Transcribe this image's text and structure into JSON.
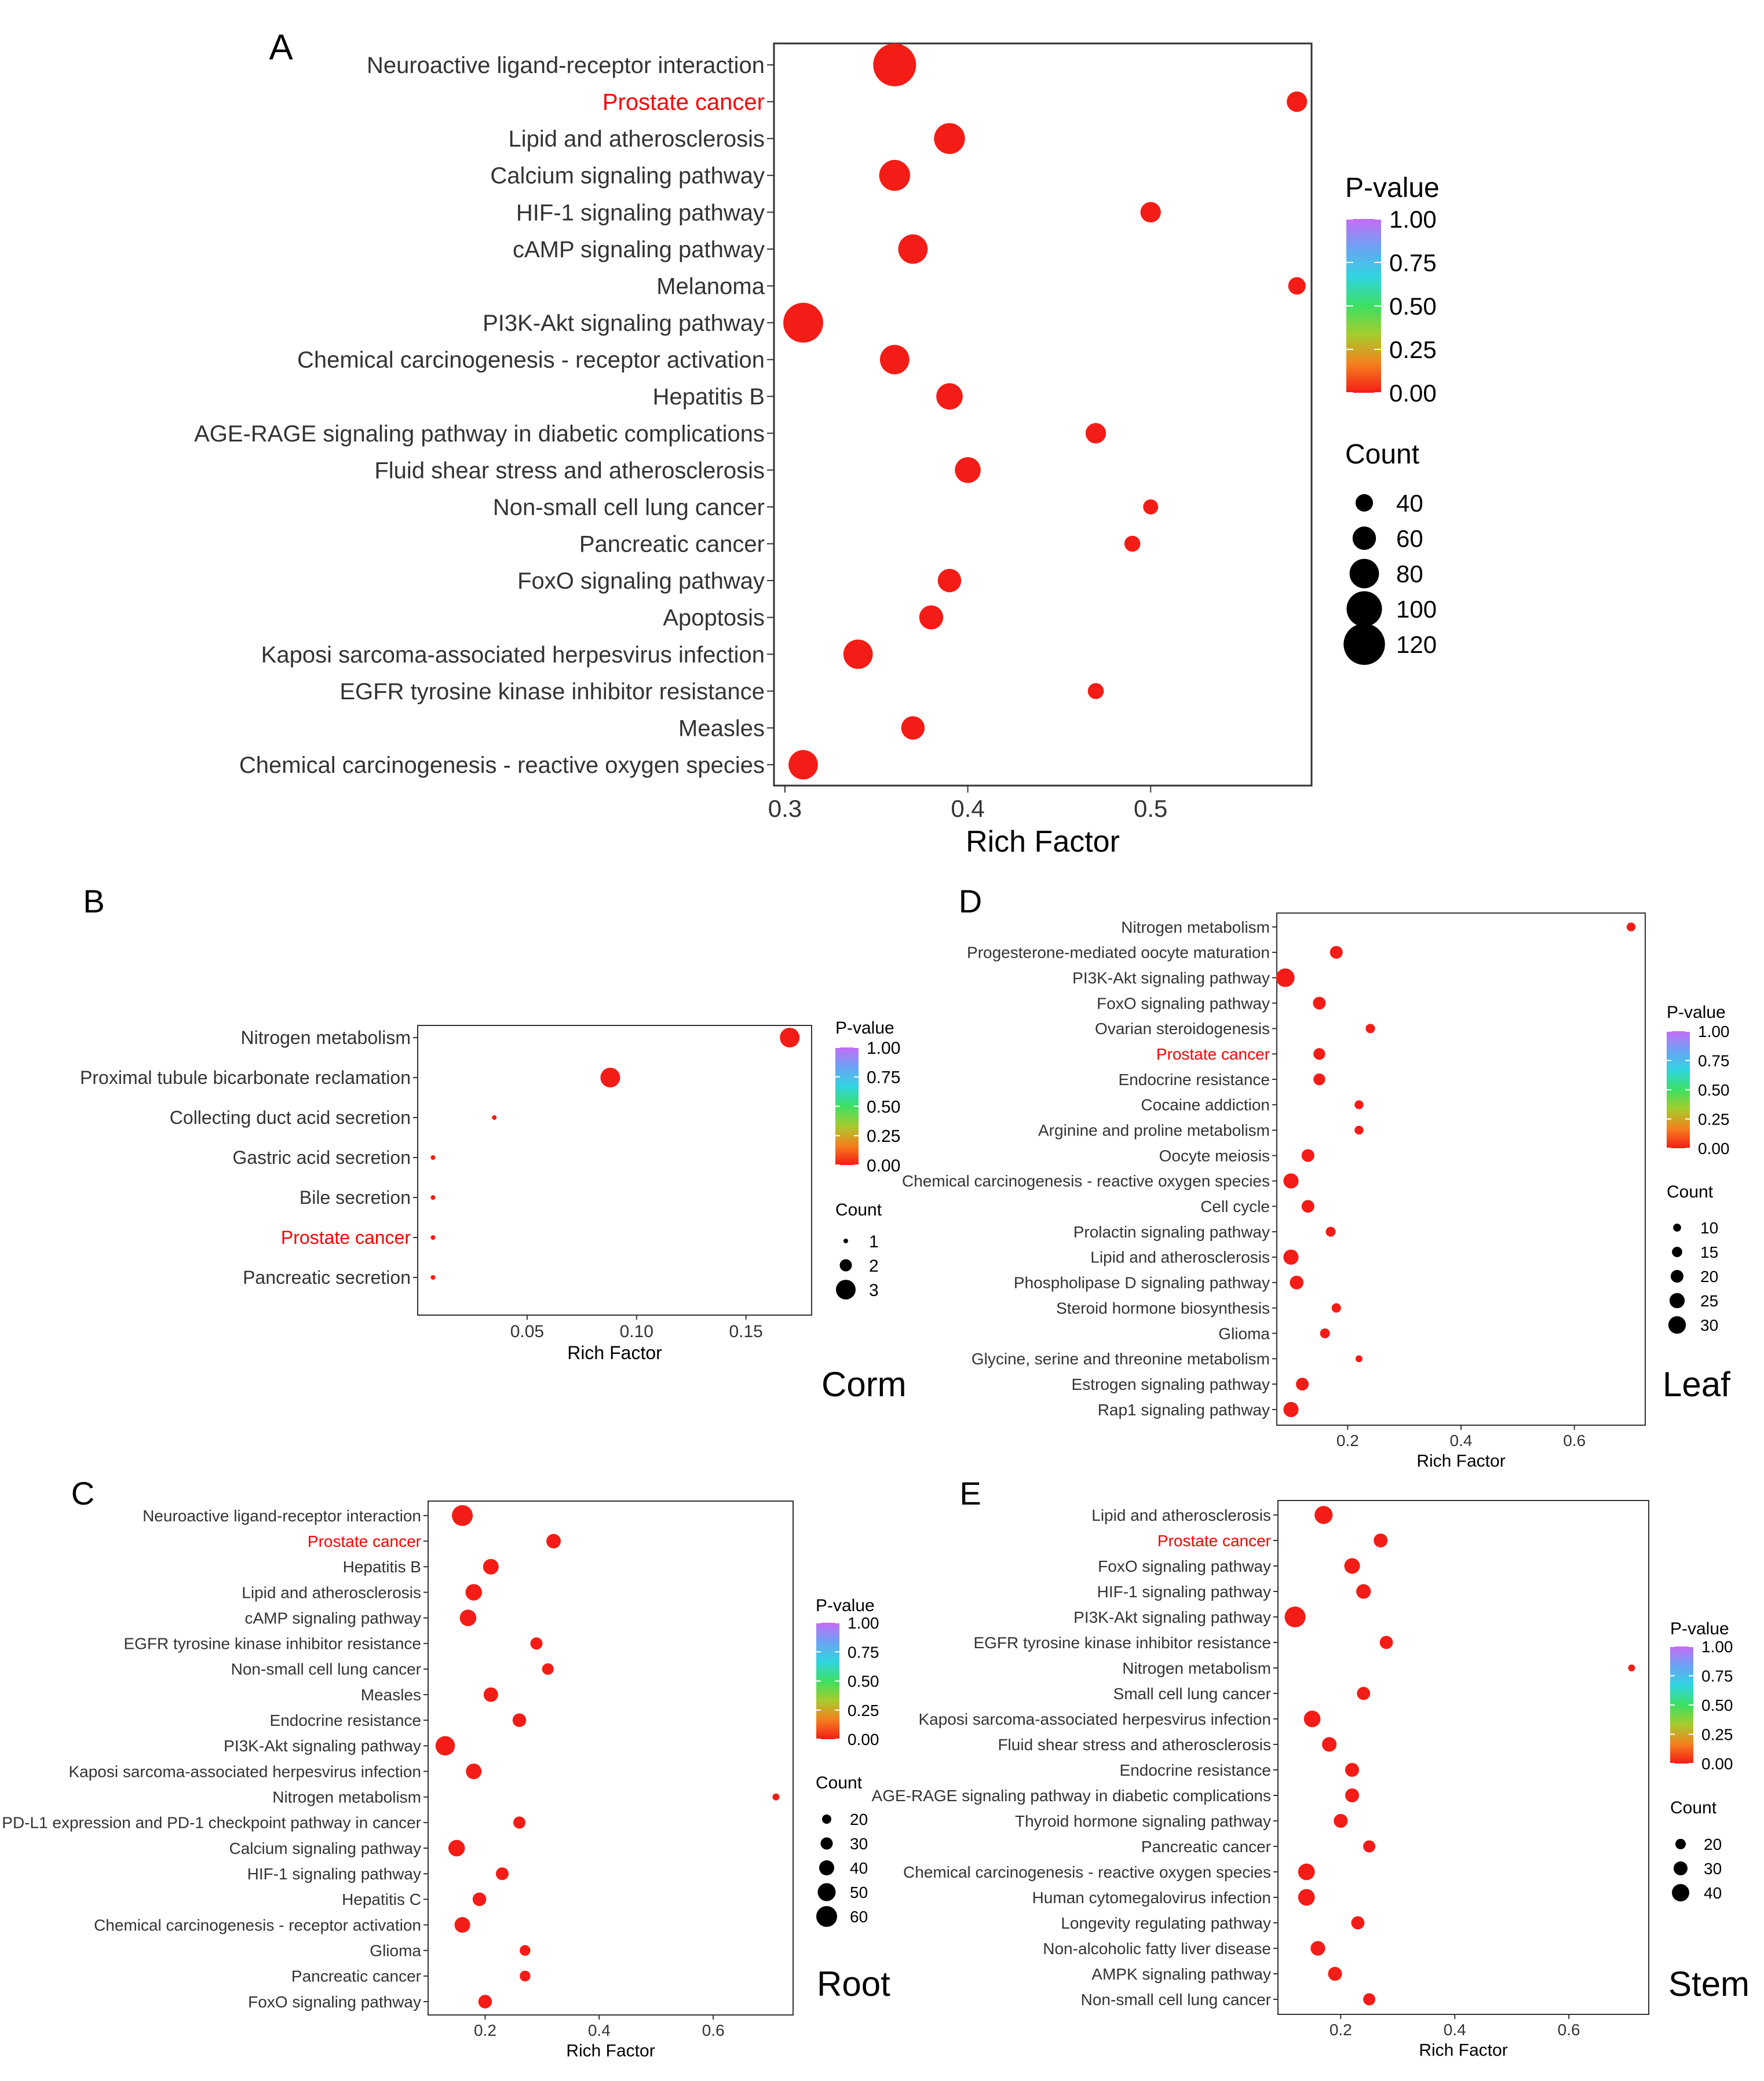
{
  "figure": {
    "colors": {
      "significant": "#f42a1a",
      "highlight_label": "#ff0000",
      "axis": "#333333",
      "label": "#333333"
    },
    "gradient_colors": [
      "#f41c16",
      "#f4801e",
      "#a6cc2d",
      "#3ce062",
      "#30d4e0",
      "#6aa4f4",
      "#c46cf4"
    ]
  },
  "chart_data": [
    {
      "panel": "A",
      "type": "scatter",
      "tissue": "",
      "xlabel": "Rich Factor",
      "xlim": [
        0.294,
        0.588
      ],
      "xticks": [
        0.3,
        0.4,
        0.5
      ],
      "xtick_labels": [
        "0.3",
        "0.4",
        "0.5"
      ],
      "highlight": "Prostate cancer",
      "legend": {
        "pvalue_title": "P-value",
        "pvalue_labels": [
          "1.00",
          "0.75",
          "0.50",
          "0.25",
          "0.00"
        ],
        "count_title": "Count",
        "count_values": [
          40,
          60,
          80,
          100,
          120
        ]
      },
      "points": [
        {
          "term": "Neuroactive ligand-receptor interaction",
          "x": 0.36,
          "count": 125,
          "p": 0.0
        },
        {
          "term": "Prostate cancer",
          "x": 0.58,
          "count": 50,
          "p": 0.0
        },
        {
          "term": "Lipid and atherosclerosis",
          "x": 0.39,
          "count": 85,
          "p": 0.0
        },
        {
          "term": "Calcium signaling pathway",
          "x": 0.36,
          "count": 85,
          "p": 0.0
        },
        {
          "term": "HIF-1 signaling pathway",
          "x": 0.5,
          "count": 50,
          "p": 0.0
        },
        {
          "term": "cAMP signaling pathway",
          "x": 0.37,
          "count": 80,
          "p": 0.0
        },
        {
          "term": "Melanoma",
          "x": 0.58,
          "count": 40,
          "p": 0.0
        },
        {
          "term": "PI3K-Akt signaling pathway",
          "x": 0.31,
          "count": 115,
          "p": 0.0
        },
        {
          "term": "Chemical carcinogenesis - receptor activation",
          "x": 0.36,
          "count": 80,
          "p": 0.0
        },
        {
          "term": "Hepatitis B",
          "x": 0.39,
          "count": 70,
          "p": 0.0
        },
        {
          "term": "AGE-RAGE signaling pathway in diabetic complications",
          "x": 0.47,
          "count": 50,
          "p": 0.0
        },
        {
          "term": "Fluid shear stress and atherosclerosis",
          "x": 0.4,
          "count": 68,
          "p": 0.0
        },
        {
          "term": "Non-small cell lung cancer",
          "x": 0.5,
          "count": 32,
          "p": 0.0
        },
        {
          "term": "Pancreatic cancer",
          "x": 0.49,
          "count": 35,
          "p": 0.0
        },
        {
          "term": "FoxO signaling pathway",
          "x": 0.39,
          "count": 60,
          "p": 0.0
        },
        {
          "term": "Apoptosis",
          "x": 0.38,
          "count": 62,
          "p": 0.0
        },
        {
          "term": "Kaposi sarcoma-associated herpesvirus infection",
          "x": 0.34,
          "count": 80,
          "p": 0.0
        },
        {
          "term": "EGFR tyrosine kinase inhibitor resistance",
          "x": 0.47,
          "count": 35,
          "p": 0.0
        },
        {
          "term": "Measles",
          "x": 0.37,
          "count": 60,
          "p": 0.0
        },
        {
          "term": "Chemical carcinogenesis - reactive oxygen species",
          "x": 0.31,
          "count": 80,
          "p": 0.0
        }
      ]
    },
    {
      "panel": "B",
      "type": "scatter",
      "tissue": "Corm",
      "xlabel": "Rich Factor",
      "xlim": [
        0.0,
        0.18
      ],
      "xticks": [
        0.05,
        0.1,
        0.15
      ],
      "xtick_labels": [
        "0.05",
        "0.10",
        "0.15"
      ],
      "highlight": "Prostate cancer",
      "legend": {
        "pvalue_title": "P-value",
        "pvalue_labels": [
          "1.00",
          "0.75",
          "0.50",
          "0.25",
          "0.00"
        ],
        "count_title": "Count",
        "count_values": [
          1,
          2,
          3
        ]
      },
      "points": [
        {
          "term": "Nitrogen metabolism",
          "x": 0.17,
          "count": 3,
          "p": 0.0
        },
        {
          "term": "Proximal tubule bicarbonate reclamation",
          "x": 0.088,
          "count": 3,
          "p": 0.0
        },
        {
          "term": "Collecting duct acid secretion",
          "x": 0.035,
          "count": 1,
          "p": 0.0
        },
        {
          "term": "Gastric acid secretion",
          "x": 0.007,
          "count": 1,
          "p": 0.0
        },
        {
          "term": "Bile secretion",
          "x": 0.007,
          "count": 1,
          "p": 0.0
        },
        {
          "term": "Prostate cancer",
          "x": 0.007,
          "count": 1,
          "p": 0.0
        },
        {
          "term": "Pancreatic secretion",
          "x": 0.007,
          "count": 1,
          "p": 0.0
        }
      ]
    },
    {
      "panel": "C",
      "type": "scatter",
      "tissue": "Root",
      "xlabel": "Rich Factor",
      "xlim": [
        0.1,
        0.74
      ],
      "xticks": [
        0.2,
        0.4,
        0.6
      ],
      "xtick_labels": [
        "0.2",
        "0.4",
        "0.6"
      ],
      "highlight": "Prostate cancer",
      "legend": {
        "pvalue_title": "P-value",
        "pvalue_labels": [
          "1.00",
          "0.75",
          "0.50",
          "0.25",
          "0.00"
        ],
        "count_title": "Count",
        "count_values": [
          20,
          30,
          40,
          50,
          60
        ]
      },
      "points": [
        {
          "term": "Neuroactive ligand-receptor interaction",
          "x": 0.16,
          "count": 60,
          "p": 0.0
        },
        {
          "term": "Prostate cancer",
          "x": 0.32,
          "count": 38,
          "p": 0.0
        },
        {
          "term": "Hepatitis B",
          "x": 0.21,
          "count": 42,
          "p": 0.0
        },
        {
          "term": "Lipid and atherosclerosis",
          "x": 0.18,
          "count": 45,
          "p": 0.0
        },
        {
          "term": "cAMP signaling pathway",
          "x": 0.17,
          "count": 45,
          "p": 0.0
        },
        {
          "term": "EGFR tyrosine kinase inhibitor resistance",
          "x": 0.29,
          "count": 30,
          "p": 0.0
        },
        {
          "term": "Non-small cell lung cancer",
          "x": 0.31,
          "count": 28,
          "p": 0.0
        },
        {
          "term": "Measles",
          "x": 0.21,
          "count": 38,
          "p": 0.0
        },
        {
          "term": "Endocrine resistance",
          "x": 0.26,
          "count": 35,
          "p": 0.0
        },
        {
          "term": "PI3K-Akt signaling pathway",
          "x": 0.13,
          "count": 55,
          "p": 0.0
        },
        {
          "term": "Kaposi sarcoma-associated herpesvirus infection",
          "x": 0.18,
          "count": 42,
          "p": 0.0
        },
        {
          "term": "Nitrogen metabolism",
          "x": 0.71,
          "count": 12,
          "p": 0.0
        },
        {
          "term": "PD-L1 expression and PD-1 checkpoint pathway in cancer",
          "x": 0.26,
          "count": 30,
          "p": 0.0
        },
        {
          "term": "Calcium signaling pathway",
          "x": 0.15,
          "count": 45,
          "p": 0.0
        },
        {
          "term": "HIF-1 signaling pathway",
          "x": 0.23,
          "count": 32,
          "p": 0.0
        },
        {
          "term": "Hepatitis C",
          "x": 0.19,
          "count": 35,
          "p": 0.0
        },
        {
          "term": "Chemical carcinogenesis - receptor activation",
          "x": 0.16,
          "count": 42,
          "p": 0.0
        },
        {
          "term": "Glioma",
          "x": 0.27,
          "count": 25,
          "p": 0.0
        },
        {
          "term": "Pancreatic cancer",
          "x": 0.27,
          "count": 25,
          "p": 0.0
        },
        {
          "term": "FoxO signaling pathway",
          "x": 0.2,
          "count": 35,
          "p": 0.0
        }
      ]
    },
    {
      "panel": "D",
      "type": "scatter",
      "tissue": "Leaf",
      "xlabel": "Rich Factor",
      "xlim": [
        0.075,
        0.725
      ],
      "xticks": [
        0.2,
        0.4,
        0.6
      ],
      "xtick_labels": [
        "0.2",
        "0.4",
        "0.6"
      ],
      "highlight": "Prostate cancer",
      "legend": {
        "pvalue_title": "P-value",
        "pvalue_labels": [
          "1.00",
          "0.75",
          "0.50",
          "0.25",
          "0.00"
        ],
        "count_title": "Count",
        "count_values": [
          10,
          15,
          20,
          25,
          30
        ]
      },
      "points": [
        {
          "term": "Nitrogen metabolism",
          "x": 0.7,
          "count": 12,
          "p": 0.0
        },
        {
          "term": "Progesterone-mediated oocyte maturation",
          "x": 0.18,
          "count": 20,
          "p": 0.0
        },
        {
          "term": "PI3K-Akt signaling pathway",
          "x": 0.09,
          "count": 32,
          "p": 0.0
        },
        {
          "term": "FoxO signaling pathway",
          "x": 0.15,
          "count": 20,
          "p": 0.0
        },
        {
          "term": "Ovarian steroidogenesis",
          "x": 0.24,
          "count": 13,
          "p": 0.0
        },
        {
          "term": "Prostate cancer",
          "x": 0.15,
          "count": 18,
          "p": 0.0
        },
        {
          "term": "Endocrine resistance",
          "x": 0.15,
          "count": 18,
          "p": 0.0
        },
        {
          "term": "Cocaine addiction",
          "x": 0.22,
          "count": 12,
          "p": 0.0
        },
        {
          "term": "Arginine and proline metabolism",
          "x": 0.22,
          "count": 12,
          "p": 0.0
        },
        {
          "term": "Oocyte meiosis",
          "x": 0.13,
          "count": 20,
          "p": 0.0
        },
        {
          "term": "Chemical carcinogenesis - reactive oxygen species",
          "x": 0.1,
          "count": 25,
          "p": 0.0
        },
        {
          "term": "Cell cycle",
          "x": 0.13,
          "count": 20,
          "p": 0.0
        },
        {
          "term": "Prolactin signaling pathway",
          "x": 0.17,
          "count": 14,
          "p": 0.0
        },
        {
          "term": "Lipid and atherosclerosis",
          "x": 0.1,
          "count": 25,
          "p": 0.0
        },
        {
          "term": "Phospholipase D signaling pathway",
          "x": 0.11,
          "count": 22,
          "p": 0.0
        },
        {
          "term": "Steroid hormone biosynthesis",
          "x": 0.18,
          "count": 13,
          "p": 0.0
        },
        {
          "term": "Glioma",
          "x": 0.16,
          "count": 14,
          "p": 0.0
        },
        {
          "term": "Glycine, serine and threonine metabolism",
          "x": 0.22,
          "count": 8,
          "p": 0.0
        },
        {
          "term": "Estrogen signaling pathway",
          "x": 0.12,
          "count": 20,
          "p": 0.0
        },
        {
          "term": "Rap1 signaling pathway",
          "x": 0.1,
          "count": 25,
          "p": 0.0
        }
      ]
    },
    {
      "panel": "E",
      "type": "scatter",
      "tissue": "Stem",
      "xlabel": "Rich Factor",
      "xlim": [
        0.09,
        0.74
      ],
      "xticks": [
        0.2,
        0.4,
        0.6
      ],
      "xtick_labels": [
        "0.2",
        "0.4",
        "0.6"
      ],
      "highlight": "Prostate cancer",
      "legend": {
        "pvalue_title": "P-value",
        "pvalue_labels": [
          "1.00",
          "0.75",
          "0.50",
          "0.25",
          "0.00"
        ],
        "count_title": "Count",
        "count_values": [
          20,
          30,
          40
        ]
      },
      "points": [
        {
          "term": "Lipid and atherosclerosis",
          "x": 0.17,
          "count": 42,
          "p": 0.0
        },
        {
          "term": "Prostate cancer",
          "x": 0.27,
          "count": 30,
          "p": 0.0
        },
        {
          "term": "FoxO signaling pathway",
          "x": 0.22,
          "count": 35,
          "p": 0.0
        },
        {
          "term": "HIF-1 signaling pathway",
          "x": 0.24,
          "count": 32,
          "p": 0.0
        },
        {
          "term": "PI3K-Akt signaling pathway",
          "x": 0.12,
          "count": 50,
          "p": 0.0
        },
        {
          "term": "EGFR tyrosine kinase inhibitor resistance",
          "x": 0.28,
          "count": 28,
          "p": 0.0
        },
        {
          "term": "Nitrogen metabolism",
          "x": 0.71,
          "count": 10,
          "p": 0.0
        },
        {
          "term": "Small cell lung cancer",
          "x": 0.24,
          "count": 28,
          "p": 0.0
        },
        {
          "term": "Kaposi sarcoma-associated herpesvirus infection",
          "x": 0.15,
          "count": 38,
          "p": 0.0
        },
        {
          "term": "Fluid shear stress and atherosclerosis",
          "x": 0.18,
          "count": 32,
          "p": 0.0
        },
        {
          "term": "Endocrine resistance",
          "x": 0.22,
          "count": 30,
          "p": 0.0
        },
        {
          "term": "AGE-RAGE signaling pathway in diabetic complications",
          "x": 0.22,
          "count": 30,
          "p": 0.0
        },
        {
          "term": "Thyroid hormone signaling pathway",
          "x": 0.2,
          "count": 30,
          "p": 0.0
        },
        {
          "term": "Pancreatic cancer",
          "x": 0.25,
          "count": 25,
          "p": 0.0
        },
        {
          "term": "Chemical carcinogenesis - reactive oxygen species",
          "x": 0.14,
          "count": 38,
          "p": 0.0
        },
        {
          "term": "Human cytomegalovirus infection",
          "x": 0.14,
          "count": 38,
          "p": 0.0
        },
        {
          "term": "Longevity regulating pathway",
          "x": 0.23,
          "count": 28,
          "p": 0.0
        },
        {
          "term": "Non-alcoholic fatty liver disease",
          "x": 0.16,
          "count": 32,
          "p": 0.0
        },
        {
          "term": "AMPK signaling pathway",
          "x": 0.19,
          "count": 30,
          "p": 0.0
        },
        {
          "term": "Non-small cell lung cancer",
          "x": 0.25,
          "count": 25,
          "p": 0.0
        }
      ]
    }
  ]
}
